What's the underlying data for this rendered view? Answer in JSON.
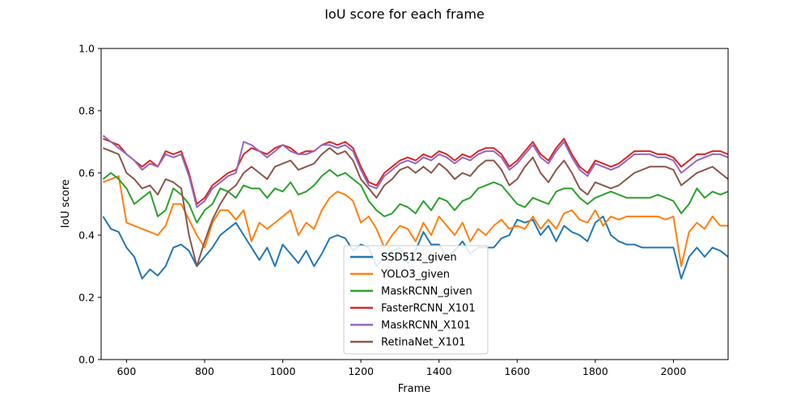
{
  "chart_data": {
    "type": "line",
    "title": "IoU score for each frame",
    "xlabel": "Frame",
    "ylabel": "IoU score",
    "xlim": [
      535,
      2140
    ],
    "ylim": [
      0.0,
      1.0
    ],
    "xticks": [
      600,
      800,
      1000,
      1200,
      1400,
      1600,
      1800,
      2000
    ],
    "yticks": [
      0.0,
      0.2,
      0.4,
      0.6,
      0.8,
      1.0
    ],
    "legend_position": "lower center",
    "grid": false,
    "x": [
      540,
      560,
      580,
      600,
      620,
      640,
      660,
      680,
      700,
      720,
      740,
      760,
      780,
      800,
      820,
      840,
      860,
      880,
      900,
      920,
      940,
      960,
      980,
      1000,
      1020,
      1040,
      1060,
      1080,
      1100,
      1120,
      1140,
      1160,
      1180,
      1200,
      1220,
      1240,
      1260,
      1280,
      1300,
      1320,
      1340,
      1360,
      1380,
      1400,
      1420,
      1440,
      1460,
      1480,
      1500,
      1520,
      1540,
      1560,
      1580,
      1600,
      1620,
      1640,
      1660,
      1680,
      1700,
      1720,
      1740,
      1760,
      1780,
      1800,
      1820,
      1840,
      1860,
      1880,
      1900,
      1920,
      1940,
      1960,
      1980,
      2000,
      2020,
      2040,
      2060,
      2080,
      2100,
      2120,
      2140
    ],
    "series": [
      {
        "name": "SSD512_given",
        "color": "#1f77b4",
        "values": [
          0.46,
          0.42,
          0.41,
          0.36,
          0.33,
          0.26,
          0.29,
          0.27,
          0.3,
          0.36,
          0.37,
          0.35,
          0.3,
          0.33,
          0.36,
          0.4,
          0.42,
          0.44,
          0.4,
          0.36,
          0.32,
          0.36,
          0.3,
          0.37,
          0.34,
          0.31,
          0.35,
          0.3,
          0.34,
          0.39,
          0.4,
          0.39,
          0.35,
          0.37,
          0.36,
          0.3,
          0.33,
          0.35,
          0.36,
          0.31,
          0.35,
          0.41,
          0.37,
          0.37,
          0.33,
          0.35,
          0.38,
          0.34,
          0.36,
          0.36,
          0.36,
          0.39,
          0.4,
          0.45,
          0.44,
          0.45,
          0.4,
          0.43,
          0.38,
          0.43,
          0.41,
          0.4,
          0.38,
          0.44,
          0.46,
          0.4,
          0.38,
          0.37,
          0.37,
          0.36,
          0.36,
          0.36,
          0.36,
          0.36,
          0.26,
          0.33,
          0.36,
          0.33,
          0.36,
          0.35,
          0.33
        ]
      },
      {
        "name": "YOLO3_given",
        "color": "#ff7f0e",
        "values": [
          0.57,
          0.58,
          0.59,
          0.44,
          0.43,
          0.42,
          0.41,
          0.4,
          0.43,
          0.5,
          0.5,
          0.45,
          0.4,
          0.36,
          0.44,
          0.48,
          0.48,
          0.45,
          0.48,
          0.38,
          0.44,
          0.42,
          0.44,
          0.46,
          0.48,
          0.4,
          0.44,
          0.42,
          0.48,
          0.52,
          0.54,
          0.53,
          0.51,
          0.44,
          0.46,
          0.42,
          0.36,
          0.4,
          0.43,
          0.42,
          0.38,
          0.44,
          0.4,
          0.46,
          0.43,
          0.4,
          0.44,
          0.38,
          0.42,
          0.4,
          0.43,
          0.45,
          0.42,
          0.43,
          0.42,
          0.46,
          0.42,
          0.45,
          0.42,
          0.47,
          0.48,
          0.45,
          0.44,
          0.48,
          0.43,
          0.46,
          0.45,
          0.46,
          0.46,
          0.46,
          0.46,
          0.46,
          0.45,
          0.46,
          0.3,
          0.41,
          0.44,
          0.42,
          0.46,
          0.43,
          0.43
        ]
      },
      {
        "name": "MaskRCNN_given",
        "color": "#2ca02c",
        "values": [
          0.58,
          0.6,
          0.58,
          0.55,
          0.5,
          0.52,
          0.54,
          0.46,
          0.48,
          0.55,
          0.53,
          0.5,
          0.44,
          0.48,
          0.5,
          0.55,
          0.54,
          0.52,
          0.56,
          0.55,
          0.55,
          0.52,
          0.55,
          0.54,
          0.57,
          0.53,
          0.54,
          0.56,
          0.59,
          0.61,
          0.59,
          0.6,
          0.58,
          0.56,
          0.51,
          0.48,
          0.46,
          0.47,
          0.5,
          0.49,
          0.47,
          0.51,
          0.48,
          0.52,
          0.51,
          0.48,
          0.51,
          0.52,
          0.55,
          0.56,
          0.57,
          0.56,
          0.53,
          0.5,
          0.49,
          0.52,
          0.51,
          0.5,
          0.54,
          0.55,
          0.55,
          0.52,
          0.5,
          0.52,
          0.53,
          0.54,
          0.53,
          0.52,
          0.52,
          0.52,
          0.52,
          0.53,
          0.52,
          0.51,
          0.47,
          0.5,
          0.55,
          0.52,
          0.54,
          0.53,
          0.54
        ]
      },
      {
        "name": "FasterRCNN_X101",
        "color": "#d62728",
        "values": [
          0.71,
          0.7,
          0.69,
          0.66,
          0.64,
          0.62,
          0.64,
          0.62,
          0.67,
          0.66,
          0.67,
          0.6,
          0.5,
          0.52,
          0.56,
          0.58,
          0.6,
          0.61,
          0.66,
          0.68,
          0.67,
          0.66,
          0.68,
          0.69,
          0.68,
          0.66,
          0.67,
          0.67,
          0.69,
          0.7,
          0.69,
          0.7,
          0.68,
          0.62,
          0.57,
          0.56,
          0.6,
          0.62,
          0.64,
          0.65,
          0.64,
          0.66,
          0.65,
          0.67,
          0.66,
          0.64,
          0.66,
          0.65,
          0.67,
          0.68,
          0.68,
          0.66,
          0.62,
          0.64,
          0.67,
          0.7,
          0.66,
          0.64,
          0.68,
          0.71,
          0.66,
          0.62,
          0.6,
          0.64,
          0.63,
          0.62,
          0.63,
          0.65,
          0.67,
          0.67,
          0.67,
          0.66,
          0.66,
          0.65,
          0.62,
          0.64,
          0.66,
          0.66,
          0.67,
          0.67,
          0.66
        ]
      },
      {
        "name": "MaskRCNN_X101",
        "color": "#9467bd",
        "values": [
          0.72,
          0.7,
          0.68,
          0.66,
          0.64,
          0.61,
          0.63,
          0.62,
          0.66,
          0.65,
          0.66,
          0.59,
          0.49,
          0.51,
          0.55,
          0.57,
          0.59,
          0.6,
          0.7,
          0.69,
          0.67,
          0.65,
          0.67,
          0.69,
          0.67,
          0.66,
          0.66,
          0.67,
          0.69,
          0.69,
          0.68,
          0.69,
          0.67,
          0.61,
          0.56,
          0.55,
          0.59,
          0.61,
          0.63,
          0.64,
          0.63,
          0.65,
          0.64,
          0.66,
          0.65,
          0.63,
          0.65,
          0.64,
          0.66,
          0.67,
          0.67,
          0.65,
          0.61,
          0.63,
          0.66,
          0.69,
          0.65,
          0.63,
          0.67,
          0.7,
          0.65,
          0.61,
          0.59,
          0.63,
          0.62,
          0.61,
          0.62,
          0.64,
          0.66,
          0.66,
          0.66,
          0.65,
          0.65,
          0.64,
          0.6,
          0.62,
          0.64,
          0.65,
          0.66,
          0.66,
          0.65
        ]
      },
      {
        "name": "RetinaNet_X101",
        "color": "#8c564b",
        "values": [
          0.68,
          0.67,
          0.66,
          0.6,
          0.58,
          0.55,
          0.56,
          0.53,
          0.58,
          0.57,
          0.55,
          0.4,
          0.3,
          0.38,
          0.45,
          0.5,
          0.54,
          0.56,
          0.6,
          0.62,
          0.6,
          0.58,
          0.62,
          0.63,
          0.64,
          0.61,
          0.62,
          0.63,
          0.66,
          0.68,
          0.66,
          0.67,
          0.64,
          0.58,
          0.55,
          0.52,
          0.56,
          0.58,
          0.61,
          0.62,
          0.6,
          0.62,
          0.6,
          0.63,
          0.61,
          0.58,
          0.6,
          0.59,
          0.62,
          0.64,
          0.64,
          0.61,
          0.56,
          0.58,
          0.62,
          0.65,
          0.6,
          0.57,
          0.61,
          0.64,
          0.6,
          0.55,
          0.53,
          0.57,
          0.56,
          0.55,
          0.56,
          0.58,
          0.6,
          0.61,
          0.62,
          0.62,
          0.62,
          0.61,
          0.56,
          0.58,
          0.6,
          0.61,
          0.62,
          0.6,
          0.58
        ]
      }
    ]
  }
}
